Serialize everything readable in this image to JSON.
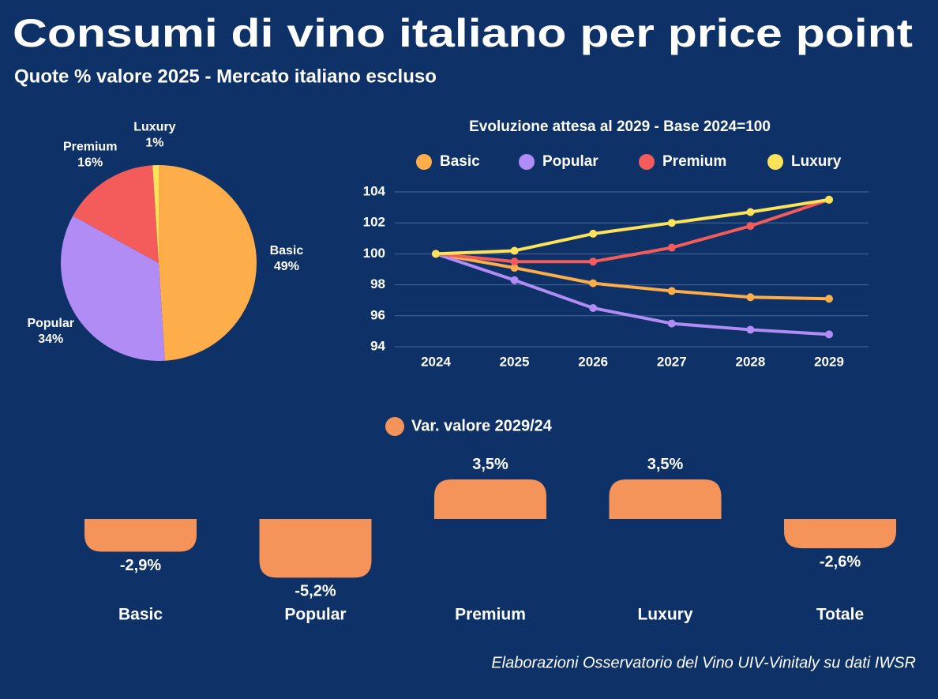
{
  "header": {
    "title": "Consumi di vino italiano per price point",
    "subtitle": "Quote % valore 2025 - Mercato italiano escluso"
  },
  "source": "Elaborazioni Osservatorio del Vino UIV-Vinitaly su dati IWSR",
  "chart_data": [
    {
      "type": "pie",
      "categories": [
        "Basic",
        "Popular",
        "Premium",
        "Luxury"
      ],
      "values": [
        49,
        34,
        16,
        1
      ],
      "value_labels": [
        "49%",
        "34%",
        "16%",
        "1%"
      ],
      "colors": [
        "#fdae4b",
        "#b08cf4",
        "#f45b5b",
        "#fde35a"
      ]
    },
    {
      "type": "line",
      "title": "Evoluzione attesa al 2029 - Base 2024=100",
      "categories": [
        "2024",
        "2025",
        "2026",
        "2027",
        "2028",
        "2029"
      ],
      "series": [
        {
          "name": "Basic",
          "color": "#fdae4b",
          "values": [
            100,
            99.1,
            98.1,
            97.6,
            97.2,
            97.1
          ]
        },
        {
          "name": "Popular",
          "color": "#b08cf4",
          "values": [
            100,
            98.3,
            96.5,
            95.5,
            95.1,
            94.8
          ]
        },
        {
          "name": "Premium",
          "color": "#f45b5b",
          "values": [
            100,
            99.5,
            99.5,
            100.4,
            101.8,
            103.5
          ]
        },
        {
          "name": "Luxury",
          "color": "#fde35a",
          "values": [
            100,
            100.2,
            101.3,
            102.0,
            102.7,
            103.5
          ]
        }
      ],
      "ylim": [
        94,
        104
      ],
      "yticks": [
        94,
        96,
        98,
        100,
        102,
        104
      ],
      "grid": true
    },
    {
      "type": "bar",
      "categories": [
        "Basic",
        "Popular",
        "Premium",
        "Luxury",
        "Totale"
      ],
      "series": [
        {
          "name": "Var. valore 2029/24",
          "color": "#f4935a",
          "values": [
            -2.9,
            -5.2,
            3.5,
            3.5,
            -2.6
          ],
          "value_labels": [
            "-2,9%",
            "-5,2%",
            "3,5%",
            "3,5%",
            "-2,6%"
          ]
        }
      ]
    }
  ]
}
